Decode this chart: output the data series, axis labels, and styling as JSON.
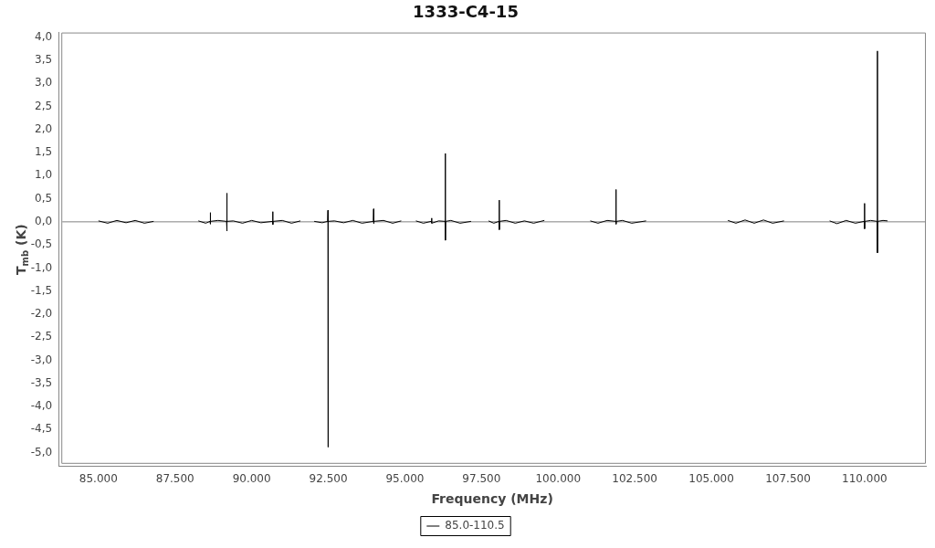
{
  "chart_data": {
    "type": "line",
    "title": "1333-C4-15",
    "xlabel": "Frequency (MHz)",
    "ylabel": "T$_{mb}$ (K)",
    "xlim": [
      83700,
      112000
    ],
    "xticks": [
      {
        "value": 85000,
        "label": "85.000"
      },
      {
        "value": 87500,
        "label": "87.500"
      },
      {
        "value": 90000,
        "label": "90.000"
      },
      {
        "value": 92500,
        "label": "92.500"
      },
      {
        "value": 95000,
        "label": "95.000"
      },
      {
        "value": 97500,
        "label": "97.500"
      },
      {
        "value": 100000,
        "label": "100.000"
      },
      {
        "value": 102500,
        "label": "102.500"
      },
      {
        "value": 105000,
        "label": "105.000"
      },
      {
        "value": 107500,
        "label": "107.500"
      },
      {
        "value": 110000,
        "label": "110.000"
      }
    ],
    "ylim": [
      -5.3,
      4.1
    ],
    "yticks": [
      {
        "value": 4,
        "label": "4,0"
      },
      {
        "value": 3.5,
        "label": "3,5"
      },
      {
        "value": 3,
        "label": "3,0"
      },
      {
        "value": 2.5,
        "label": "2,5"
      },
      {
        "value": 2,
        "label": "2,0"
      },
      {
        "value": 1.5,
        "label": "1,5"
      },
      {
        "value": 1,
        "label": "1,0"
      },
      {
        "value": 0.5,
        "label": "0,5"
      },
      {
        "value": 0,
        "label": "0,0"
      },
      {
        "value": -0.5,
        "label": "-0,5"
      },
      {
        "value": -1,
        "label": "-1,0"
      },
      {
        "value": -1.5,
        "label": "-1,5"
      },
      {
        "value": -2,
        "label": "-2,0"
      },
      {
        "value": -2.5,
        "label": "-2,5"
      },
      {
        "value": -3,
        "label": "-3,0"
      },
      {
        "value": -3.5,
        "label": "-3,5"
      },
      {
        "value": -4,
        "label": "-4,0"
      },
      {
        "value": -4.5,
        "label": "-4,5"
      },
      {
        "value": -5,
        "label": "-5,0"
      }
    ],
    "grid": false,
    "legend": "bottom",
    "marker": "none",
    "line_style": "solid",
    "ref_lines": [
      {
        "axis": "y",
        "value": 0,
        "color": "#808080"
      }
    ],
    "series": [
      {
        "name": "85.0-110.5",
        "color": "#000000",
        "x": [
          85000,
          85300,
          85600,
          85900,
          86200,
          86500,
          86800,
          87500,
          88260,
          88500,
          88640,
          88650,
          88650,
          88660,
          88900,
          89180,
          89190,
          89190,
          89200,
          89400,
          89700,
          90000,
          90300,
          90680,
          90690,
          90690,
          90700,
          91000,
          91300,
          91590,
          91800,
          92040,
          92300,
          92480,
          92490,
          92490,
          92500,
          92700,
          93000,
          93300,
          93600,
          93970,
          93980,
          93980,
          93990,
          94300,
          94600,
          94880,
          95100,
          95360,
          95600,
          95860,
          95870,
          95880,
          96100,
          96310,
          96320,
          96320,
          96330,
          96500,
          96800,
          97160,
          97450,
          97730,
          97900,
          98070,
          98080,
          98080,
          98090,
          98300,
          98600,
          98900,
          99200,
          99550,
          100300,
          101050,
          101300,
          101600,
          101880,
          101890,
          101890,
          101900,
          102100,
          102400,
          102870,
          104200,
          105540,
          105800,
          106100,
          106400,
          106700,
          107000,
          107370,
          108100,
          108860,
          109100,
          109400,
          109700,
          109990,
          110000,
          110000,
          110010,
          110200,
          110410,
          110420,
          110420,
          110430,
          110600,
          110750
        ],
        "values": [
          0.02,
          -0.03,
          0.03,
          -0.02,
          0.03,
          -0.03,
          0.01,
          null,
          0.02,
          -0.03,
          0.01,
          0.2,
          -0.05,
          0.01,
          0.03,
          0.01,
          0.62,
          -0.2,
          0.01,
          0.02,
          -0.03,
          0.03,
          -0.02,
          0.01,
          0.22,
          -0.06,
          0.01,
          0.03,
          -0.03,
          0.02,
          null,
          0.01,
          -0.02,
          0.01,
          0.25,
          -4.88,
          0.01,
          0.02,
          -0.02,
          0.03,
          -0.03,
          0.01,
          0.28,
          -0.04,
          0.01,
          0.03,
          -0.03,
          0.02,
          null,
          0.02,
          -0.03,
          0.01,
          0.08,
          -0.03,
          0.02,
          0.01,
          1.48,
          -0.4,
          0.01,
          0.03,
          -0.03,
          0.01,
          null,
          0.02,
          -0.03,
          0.01,
          0.47,
          -0.17,
          0.01,
          0.03,
          -0.03,
          0.02,
          -0.03,
          0.03,
          null,
          0.02,
          -0.03,
          0.03,
          0.01,
          0.7,
          -0.05,
          0.01,
          0.03,
          -0.03,
          0.02,
          null,
          0.03,
          -0.03,
          0.04,
          -0.03,
          0.04,
          -0.03,
          0.02,
          null,
          0.02,
          -0.04,
          0.03,
          -0.03,
          0.01,
          0.4,
          -0.15,
          0.01,
          0.03,
          0.01,
          3.7,
          -0.67,
          0.01,
          0.03,
          0.02
        ]
      }
    ]
  }
}
